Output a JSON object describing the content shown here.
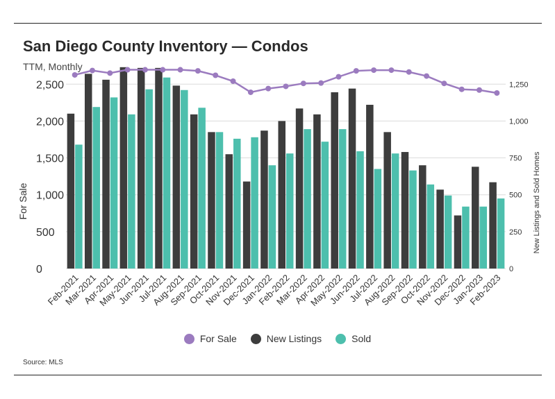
{
  "header": {
    "title": "San Diego County Inventory — Condos",
    "subtitle": "TTM, Monthly"
  },
  "footer": {
    "source": "Source:  MLS"
  },
  "colors": {
    "for_sale": "#9b7bbf",
    "new_listings": "#3d3d3d",
    "sold": "#4dbfad",
    "grid": "#dcdcdc"
  },
  "chart_data": {
    "type": "bar",
    "categories": [
      "Feb-2021",
      "Mar-2021",
      "Apr-2021",
      "May-2021",
      "Jun-2021",
      "Jul-2021",
      "Aug-2021",
      "Sep-2021",
      "Oct-2021",
      "Nov-2021",
      "Dec-2021",
      "Jan-2022",
      "Feb-2022",
      "Mar-2022",
      "Apr-2022",
      "May-2022",
      "Jun-2022",
      "Jul-2022",
      "Aug-2022",
      "Sep-2022",
      "Oct-2022",
      "Nov-2022",
      "Dec-2022",
      "Jan-2023",
      "Feb-2023"
    ],
    "ylabel": "For Sale",
    "y2label": "New Listings and Sold Homes",
    "ylim": [
      0,
      2700
    ],
    "y2lim": [
      0,
      1350
    ],
    "yticks": [
      0,
      500,
      1000,
      1500,
      2000,
      2500
    ],
    "ytick_labels": [
      "0",
      "500",
      "1,000",
      "1,500",
      "2,000",
      "2,500"
    ],
    "y2ticks": [
      0,
      250,
      500,
      750,
      1000,
      1250
    ],
    "y2tick_labels": [
      "0",
      "250",
      "500",
      "750",
      "1,000",
      "1,250"
    ],
    "grid": true,
    "legend_position": "bottom-center",
    "series": [
      {
        "name": "For Sale",
        "type": "line",
        "axis": "left",
        "values": [
          2625,
          2685,
          2650,
          2695,
          2695,
          2695,
          2695,
          2680,
          2620,
          2540,
          2390,
          2440,
          2470,
          2510,
          2515,
          2600,
          2680,
          2690,
          2690,
          2665,
          2610,
          2510,
          2430,
          2420,
          2380
        ]
      },
      {
        "name": "New Listings",
        "type": "bar",
        "axis": "right",
        "values": [
          1050,
          1320,
          1280,
          1365,
          1360,
          1360,
          1240,
          1045,
          925,
          775,
          590,
          935,
          1000,
          1085,
          1045,
          1195,
          1220,
          1110,
          925,
          790,
          700,
          535,
          360,
          690,
          585
        ]
      },
      {
        "name": "Sold",
        "type": "bar",
        "axis": "right",
        "values": [
          840,
          1095,
          1160,
          1045,
          1215,
          1295,
          1210,
          1090,
          925,
          880,
          890,
          700,
          780,
          945,
          860,
          945,
          795,
          675,
          780,
          665,
          570,
          495,
          420,
          420,
          475
        ]
      }
    ]
  }
}
